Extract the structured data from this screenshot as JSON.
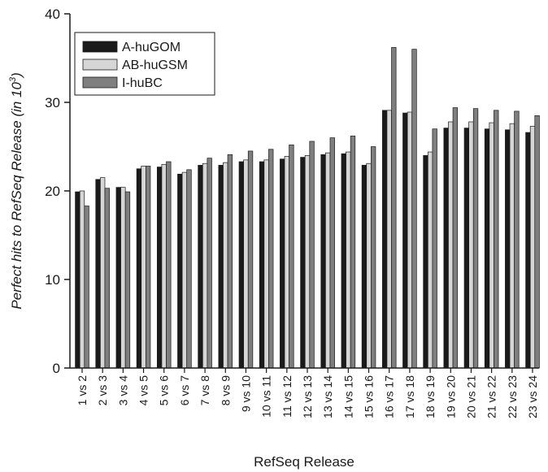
{
  "chart_data": {
    "type": "bar",
    "title": "",
    "xlabel": "RefSeq Release",
    "ylabel_main": "Perfect hits to RefSeq Release (in 10",
    "ylabel_sup": "3",
    "ylabel_end": ")",
    "ylim": [
      0,
      40
    ],
    "yticks": [
      "0",
      "10",
      "20",
      "30",
      "40"
    ],
    "ytick_values": [
      0,
      10,
      20,
      30,
      40
    ],
    "legend_position": "top-left",
    "grid": false,
    "categories": [
      "1 vs 2",
      "2 vs 3",
      "3 vs 4",
      "4 vs 5",
      "5 vs 6",
      "6 vs 7",
      "7 vs 8",
      "8 vs 9",
      "9 vs 10",
      "10 vs 11",
      "11 vs 12",
      "12 vs 13",
      "13 vs 14",
      "14 vs 15",
      "15 vs 16",
      "16 vs 17",
      "17 vs 18",
      "18 vs 19",
      "19 vs 20",
      "20 vs 21",
      "21 vs 22",
      "22 vs 23",
      "23 vs 24"
    ],
    "series": [
      {
        "name": "A-huGOM",
        "color": "#1a1a1a",
        "values": [
          19.9,
          21.3,
          20.4,
          22.5,
          22.7,
          21.9,
          22.9,
          22.9,
          23.3,
          23.3,
          23.6,
          23.8,
          24.1,
          24.2,
          22.9,
          29.1,
          28.8,
          24.0,
          27.1,
          27.1,
          27.0,
          26.9,
          26.6
        ]
      },
      {
        "name": "AB-huGSM",
        "color": "#d6d6d6",
        "values": [
          20.0,
          21.5,
          20.4,
          22.8,
          23.0,
          22.1,
          23.1,
          23.2,
          23.5,
          23.5,
          23.9,
          24.0,
          24.3,
          24.4,
          23.1,
          29.1,
          28.9,
          24.4,
          27.8,
          27.8,
          27.7,
          27.6,
          27.3
        ]
      },
      {
        "name": "I-huBC",
        "color": "#7f7f7f",
        "values": [
          18.3,
          20.3,
          19.9,
          22.8,
          23.3,
          22.4,
          23.7,
          24.1,
          24.5,
          24.7,
          25.2,
          25.6,
          26.0,
          26.2,
          25.0,
          36.2,
          36.0,
          27.0,
          29.4,
          29.3,
          29.1,
          29.0,
          28.5
        ]
      }
    ]
  }
}
